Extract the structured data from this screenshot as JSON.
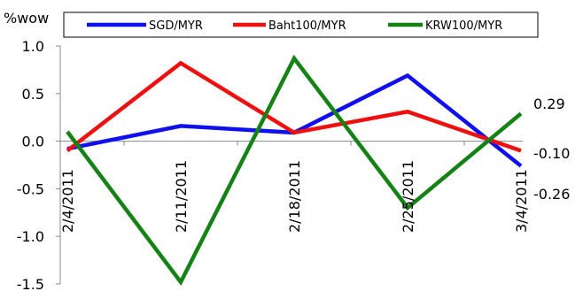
{
  "chart_data": {
    "type": "line",
    "ylabel": "%wow",
    "ylim": [
      -1.5,
      1.0
    ],
    "yticks": [
      "1.0",
      "0.5",
      "0.0",
      "-0.5",
      "-1.0",
      "-1.5"
    ],
    "ytick_values": [
      1.0,
      0.5,
      0.0,
      -0.5,
      -1.0,
      -1.5
    ],
    "categories": [
      "2/4/2011",
      "2/11/2011",
      "2/18/2011",
      "2/25/2011",
      "3/4/2011"
    ],
    "legend_position": "top",
    "series": [
      {
        "name": "SGD/MYR",
        "color": "#1010ee",
        "values": [
          -0.08,
          0.16,
          0.09,
          0.69,
          -0.26
        ],
        "end_label": "-0.26"
      },
      {
        "name": "Baht100/MYR",
        "color": "#ee1010",
        "values": [
          -0.1,
          0.82,
          0.09,
          0.31,
          -0.1
        ],
        "end_label": "-0.10"
      },
      {
        "name": "KRW100/MYR",
        "color": "#148214",
        "values": [
          0.1,
          -1.48,
          0.87,
          -0.7,
          0.29
        ],
        "end_label": "0.29"
      }
    ]
  }
}
